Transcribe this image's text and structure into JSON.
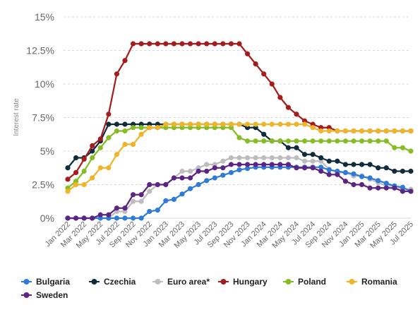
{
  "chart_data": {
    "type": "line",
    "ylabel": "Interest rate",
    "xlabel": "",
    "ylim": [
      0,
      15
    ],
    "y_ticks": [
      0,
      2.5,
      5,
      7.5,
      10,
      12.5,
      15
    ],
    "y_tick_labels": [
      "0%",
      "2.5%",
      "5%",
      "7.5%",
      "10%",
      "12.5%",
      "15%"
    ],
    "x_tick_labels": [
      "Jan 2022",
      "Mar 2022",
      "May 2022",
      "Jul 2022",
      "Sep 2022",
      "Nov 2022",
      "Jan 2023",
      "Mar 2023",
      "May 2023",
      "Jul 2023",
      "Sep 2023",
      "Nov 2023",
      "Jan 2024",
      "Mar 2024",
      "May 2024",
      "Jul 2024",
      "Sep 2024",
      "Nov 2024",
      "Jan 2025",
      "Mar 2025",
      "May 2025",
      "Jul 2025"
    ],
    "grid": "horizontal dashed",
    "legend_position": "bottom",
    "x": [
      "Jan 2022",
      "Feb 2022",
      "Mar 2022",
      "Apr 2022",
      "May 2022",
      "Jun 2022",
      "Jul 2022",
      "Aug 2022",
      "Sep 2022",
      "Oct 2022",
      "Nov 2022",
      "Dec 2022",
      "Jan 2023",
      "Feb 2023",
      "Mar 2023",
      "Apr 2023",
      "May 2023",
      "Jun 2023",
      "Jul 2023",
      "Aug 2023",
      "Sep 2023",
      "Oct 2023",
      "Nov 2023",
      "Dec 2023",
      "Jan 2024",
      "Feb 2024",
      "Mar 2024",
      "Apr 2024",
      "May 2024",
      "Jun 2024",
      "Jul 2024",
      "Aug 2024",
      "Sep 2024",
      "Oct 2024",
      "Nov 2024",
      "Dec 2024",
      "Jan 2025",
      "Feb 2025",
      "Mar 2025",
      "Apr 2025",
      "May 2025",
      "Jun 2025",
      "Jul 2025"
    ],
    "series": [
      {
        "name": "Euro area*",
        "color": "#bdbdbd",
        "values": [
          0,
          0,
          0,
          0,
          0,
          0,
          0.5,
          0.5,
          1.25,
          1.25,
          2.0,
          2.5,
          2.5,
          3.0,
          3.5,
          3.5,
          3.75,
          4.0,
          4.0,
          4.25,
          4.5,
          4.5,
          4.5,
          4.5,
          4.5,
          4.5,
          4.5,
          4.5,
          4.5,
          4.25,
          4.25,
          4.25,
          3.65,
          3.4,
          3.4,
          3.15,
          3.15,
          2.9,
          2.65,
          2.4,
          2.4,
          2.15,
          2.15
        ]
      },
      {
        "name": "Bulgaria",
        "color": "#2e7bd8",
        "values": [
          0,
          0,
          0,
          0,
          0,
          0,
          0,
          0,
          0,
          0,
          0.5,
          0.6,
          1.3,
          1.4,
          1.8,
          2.2,
          2.5,
          2.8,
          3.0,
          3.2,
          3.4,
          3.6,
          3.7,
          3.8,
          3.8,
          3.8,
          3.8,
          3.8,
          3.8,
          3.8,
          3.8,
          3.8,
          3.6,
          3.5,
          3.4,
          3.3,
          3.1,
          3.0,
          2.8,
          2.6,
          2.4,
          2.3,
          2.0
        ]
      },
      {
        "name": "Czechia",
        "color": "#0f2c3d",
        "values": [
          3.75,
          4.5,
          4.5,
          5.0,
          5.75,
          7.0,
          7.0,
          7.0,
          7.0,
          7.0,
          7.0,
          7.0,
          7.0,
          7.0,
          7.0,
          7.0,
          7.0,
          7.0,
          7.0,
          7.0,
          7.0,
          7.0,
          6.75,
          6.75,
          6.25,
          5.75,
          5.75,
          5.25,
          5.25,
          4.75,
          4.75,
          4.5,
          4.25,
          4.25,
          4.0,
          4.0,
          4.0,
          4.0,
          3.75,
          3.75,
          3.5,
          3.5,
          3.5
        ]
      },
      {
        "name": "Hungary",
        "color": "#a61c1c",
        "values": [
          2.9,
          3.4,
          4.4,
          5.4,
          5.9,
          7.75,
          10.75,
          11.75,
          13.0,
          13.0,
          13.0,
          13.0,
          13.0,
          13.0,
          13.0,
          13.0,
          13.0,
          13.0,
          13.0,
          13.0,
          13.0,
          13.0,
          12.25,
          11.5,
          10.75,
          10.0,
          9.0,
          8.25,
          7.75,
          7.25,
          7.0,
          6.75,
          6.75,
          6.5,
          6.5,
          6.5,
          6.5,
          6.5,
          6.5,
          6.5,
          6.5,
          6.5,
          6.5
        ]
      },
      {
        "name": "Poland",
        "color": "#86bc24",
        "values": [
          2.25,
          2.75,
          3.5,
          4.5,
          5.25,
          6.0,
          6.5,
          6.5,
          6.75,
          6.75,
          6.75,
          6.75,
          6.75,
          6.75,
          6.75,
          6.75,
          6.75,
          6.75,
          6.75,
          6.75,
          6.75,
          6.0,
          5.75,
          5.75,
          5.75,
          5.75,
          5.75,
          5.75,
          5.75,
          5.75,
          5.75,
          5.75,
          5.75,
          5.75,
          5.75,
          5.75,
          5.75,
          5.75,
          5.75,
          5.75,
          5.25,
          5.25,
          5.0
        ]
      },
      {
        "name": "Romania",
        "color": "#f0b429",
        "values": [
          2.0,
          2.5,
          2.5,
          3.0,
          3.75,
          3.75,
          4.75,
          5.5,
          5.5,
          6.25,
          6.75,
          6.75,
          7.0,
          7.0,
          7.0,
          7.0,
          7.0,
          7.0,
          7.0,
          7.0,
          7.0,
          7.0,
          7.0,
          7.0,
          7.0,
          7.0,
          7.0,
          7.0,
          7.0,
          7.0,
          6.75,
          6.5,
          6.5,
          6.5,
          6.5,
          6.5,
          6.5,
          6.5,
          6.5,
          6.5,
          6.5,
          6.5,
          6.5
        ]
      },
      {
        "name": "Sweden",
        "color": "#5c2483",
        "values": [
          0,
          0,
          0,
          0,
          0.25,
          0.25,
          0.75,
          0.75,
          1.75,
          1.75,
          2.5,
          2.5,
          2.5,
          3.0,
          3.0,
          3.0,
          3.5,
          3.5,
          3.75,
          3.75,
          4.0,
          4.0,
          4.0,
          4.0,
          4.0,
          4.0,
          4.0,
          4.0,
          3.75,
          3.75,
          3.75,
          3.5,
          3.25,
          3.25,
          2.75,
          2.5,
          2.5,
          2.25,
          2.25,
          2.25,
          2.25,
          2.0,
          2.0
        ]
      }
    ]
  },
  "legend": [
    {
      "name": "Bulgaria",
      "color": "#2e7bd8"
    },
    {
      "name": "Czechia",
      "color": "#0f2c3d"
    },
    {
      "name": "Euro area*",
      "color": "#bdbdbd"
    },
    {
      "name": "Hungary",
      "color": "#a61c1c"
    },
    {
      "name": "Poland",
      "color": "#86bc24"
    },
    {
      "name": "Romania",
      "color": "#f0b429"
    },
    {
      "name": "Sweden",
      "color": "#5c2483"
    }
  ]
}
